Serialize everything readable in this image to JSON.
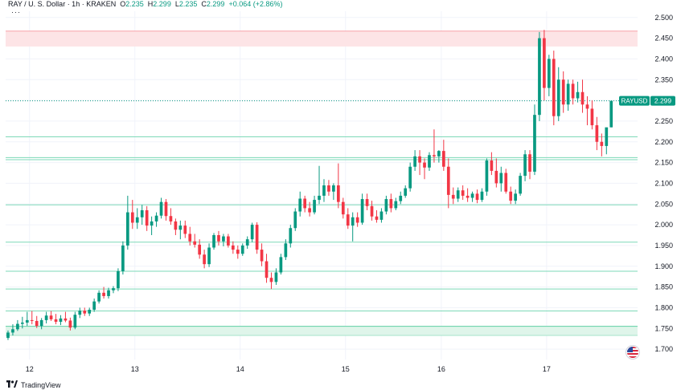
{
  "header": {
    "symbol": "RAY / U. S. Dollar · 1h · KRAKEN",
    "o_label": "O",
    "o": "2.235",
    "h_label": "H",
    "h": "2.299",
    "l_label": "L",
    "l": "2.235",
    "c_label": "C",
    "c": "2.299",
    "change": "+0.064 (+2.86%)",
    "more": "···"
  },
  "brand": {
    "name": "TradingView"
  },
  "colors": {
    "up": "#089981",
    "down": "#f23645",
    "grid": "#f0f3fa",
    "axis_text": "#131722"
  },
  "chart_data": {
    "type": "candlestick",
    "y_ticks": [
      1.7,
      1.75,
      1.8,
      1.85,
      1.9,
      1.95,
      2.0,
      2.05,
      2.1,
      2.15,
      2.2,
      2.25,
      2.3,
      2.35,
      2.4,
      2.45,
      2.5
    ],
    "y_tick_labels": [
      "1.700",
      "1.750",
      "1.800",
      "1.850",
      "1.900",
      "1.950",
      "2.000",
      "2.050",
      "2.100",
      "2.150",
      "2.200",
      "2.250",
      "2.300",
      "2.350",
      "2.400",
      "2.450",
      "2.500"
    ],
    "ylim": [
      1.675,
      2.515
    ],
    "x_labels": [
      {
        "label": "12",
        "at": 4.5
      },
      {
        "label": "13",
        "at": 26.5
      },
      {
        "label": "14",
        "at": 48.5
      },
      {
        "label": "15",
        "at": 70.5
      },
      {
        "label": "16",
        "at": 90.5
      },
      {
        "label": "17",
        "at": 112.5
      }
    ],
    "xlim": [
      -0.5,
      131.5
    ],
    "last_price_label": "RAYUSD",
    "last_price": "2.299",
    "resistance_zone": [
      2.43,
      2.467
    ],
    "support_zone": [
      1.733,
      1.755
    ],
    "horizontal_lines": [
      2.212,
      2.162,
      2.157,
      2.048,
      1.958,
      1.888,
      1.845,
      1.792
    ],
    "candles": [
      [
        1.727,
        1.745,
        1.722,
        1.74
      ],
      [
        1.74,
        1.76,
        1.733,
        1.748
      ],
      [
        1.748,
        1.77,
        1.744,
        1.761
      ],
      [
        1.761,
        1.778,
        1.75,
        1.764
      ],
      [
        1.764,
        1.79,
        1.756,
        1.77
      ],
      [
        1.77,
        1.792,
        1.76,
        1.768
      ],
      [
        1.768,
        1.78,
        1.751,
        1.756
      ],
      [
        1.756,
        1.775,
        1.748,
        1.77
      ],
      [
        1.77,
        1.79,
        1.762,
        1.781
      ],
      [
        1.781,
        1.792,
        1.768,
        1.772
      ],
      [
        1.772,
        1.785,
        1.76,
        1.766
      ],
      [
        1.766,
        1.782,
        1.758,
        1.774
      ],
      [
        1.774,
        1.79,
        1.765,
        1.769
      ],
      [
        1.769,
        1.776,
        1.745,
        1.752
      ],
      [
        1.752,
        1.79,
        1.748,
        1.783
      ],
      [
        1.783,
        1.8,
        1.775,
        1.793
      ],
      [
        1.793,
        1.8,
        1.78,
        1.786
      ],
      [
        1.786,
        1.8,
        1.78,
        1.795
      ],
      [
        1.795,
        1.822,
        1.79,
        1.815
      ],
      [
        1.815,
        1.842,
        1.81,
        1.836
      ],
      [
        1.836,
        1.85,
        1.822,
        1.828
      ],
      [
        1.828,
        1.848,
        1.822,
        1.842
      ],
      [
        1.842,
        1.852,
        1.835,
        1.847
      ],
      [
        1.847,
        1.895,
        1.84,
        1.888
      ],
      [
        1.888,
        1.96,
        1.88,
        1.95
      ],
      [
        1.95,
        2.07,
        1.94,
        2.03
      ],
      [
        2.03,
        2.06,
        1.99,
        2.005
      ],
      [
        2.005,
        2.04,
        1.99,
        2.018
      ],
      [
        2.018,
        2.048,
        2.0,
        2.035
      ],
      [
        2.035,
        2.045,
        1.985,
        1.998
      ],
      [
        1.998,
        2.02,
        1.975,
        2.008
      ],
      [
        2.008,
        2.03,
        1.995,
        2.022
      ],
      [
        2.022,
        2.065,
        2.015,
        2.055
      ],
      [
        2.055,
        2.062,
        2.01,
        2.021
      ],
      [
        2.021,
        2.04,
        2.0,
        2.008
      ],
      [
        2.008,
        2.015,
        1.975,
        1.988
      ],
      [
        1.988,
        2.01,
        1.965,
        1.998
      ],
      [
        1.998,
        2.01,
        1.968,
        1.978
      ],
      [
        1.978,
        1.995,
        1.95,
        1.96
      ],
      [
        1.96,
        1.978,
        1.945,
        1.952
      ],
      [
        1.952,
        1.965,
        1.918,
        1.928
      ],
      [
        1.928,
        1.94,
        1.895,
        1.905
      ],
      [
        1.905,
        1.955,
        1.898,
        1.945
      ],
      [
        1.945,
        1.98,
        1.94,
        1.975
      ],
      [
        1.975,
        1.985,
        1.95,
        1.96
      ],
      [
        1.96,
        1.978,
        1.948,
        1.972
      ],
      [
        1.972,
        1.978,
        1.945,
        1.95
      ],
      [
        1.95,
        1.96,
        1.93,
        1.94
      ],
      [
        1.94,
        1.95,
        1.918,
        1.93
      ],
      [
        1.93,
        1.955,
        1.925,
        1.95
      ],
      [
        1.95,
        1.972,
        1.942,
        1.965
      ],
      [
        1.965,
        2.005,
        1.958,
        2.0
      ],
      [
        2.0,
        2.006,
        1.93,
        1.94
      ],
      [
        1.94,
        1.955,
        1.9,
        1.912
      ],
      [
        1.912,
        1.93,
        1.86,
        1.872
      ],
      [
        1.872,
        1.885,
        1.845,
        1.862
      ],
      [
        1.862,
        1.895,
        1.855,
        1.885
      ],
      [
        1.885,
        1.93,
        1.88,
        1.922
      ],
      [
        1.922,
        1.965,
        1.915,
        1.955
      ],
      [
        1.955,
        2.0,
        1.945,
        1.992
      ],
      [
        1.992,
        2.04,
        1.985,
        2.032
      ],
      [
        2.032,
        2.08,
        2.02,
        2.063
      ],
      [
        2.063,
        2.07,
        2.03,
        2.04
      ],
      [
        2.04,
        2.055,
        2.02,
        2.03
      ],
      [
        2.03,
        2.07,
        2.025,
        2.06
      ],
      [
        2.06,
        2.142,
        2.05,
        2.07
      ],
      [
        2.07,
        2.11,
        2.055,
        2.095
      ],
      [
        2.095,
        2.108,
        2.07,
        2.08
      ],
      [
        2.08,
        2.1,
        2.06,
        2.095
      ],
      [
        2.095,
        2.148,
        2.04,
        2.055
      ],
      [
        2.055,
        2.065,
        2.015,
        2.025
      ],
      [
        2.025,
        2.04,
        1.99,
        1.998
      ],
      [
        1.998,
        2.03,
        1.96,
        2.018
      ],
      [
        2.018,
        2.03,
        1.995,
        2.005
      ],
      [
        2.005,
        2.075,
        2.0,
        2.062
      ],
      [
        2.062,
        2.075,
        2.035,
        2.045
      ],
      [
        2.045,
        2.058,
        2.01,
        2.02
      ],
      [
        2.02,
        2.035,
        2.005,
        2.012
      ],
      [
        2.012,
        2.04,
        2.005,
        2.032
      ],
      [
        2.032,
        2.07,
        2.025,
        2.062
      ],
      [
        2.062,
        2.075,
        2.03,
        2.04
      ],
      [
        2.04,
        2.065,
        2.035,
        2.057
      ],
      [
        2.057,
        2.08,
        2.05,
        2.07
      ],
      [
        2.07,
        2.095,
        2.065,
        2.088
      ],
      [
        2.088,
        2.15,
        2.08,
        2.14
      ],
      [
        2.14,
        2.18,
        2.13,
        2.165
      ],
      [
        2.165,
        2.18,
        2.12,
        2.15
      ],
      [
        2.15,
        2.16,
        2.11,
        2.138
      ],
      [
        2.138,
        2.175,
        2.13,
        2.168
      ],
      [
        2.168,
        2.23,
        2.15,
        2.165
      ],
      [
        2.165,
        2.18,
        2.15,
        2.178
      ],
      [
        2.178,
        2.205,
        2.13,
        2.14
      ],
      [
        2.14,
        2.16,
        2.04,
        2.072
      ],
      [
        2.072,
        2.09,
        2.05,
        2.063
      ],
      [
        2.063,
        2.09,
        2.055,
        2.083
      ],
      [
        2.083,
        2.095,
        2.06,
        2.07
      ],
      [
        2.07,
        2.088,
        2.055,
        2.065
      ],
      [
        2.065,
        2.08,
        2.055,
        2.075
      ],
      [
        2.075,
        2.085,
        2.052,
        2.06
      ],
      [
        2.06,
        2.088,
        2.055,
        2.08
      ],
      [
        2.08,
        2.16,
        2.07,
        2.155
      ],
      [
        2.155,
        2.175,
        2.12,
        2.13
      ],
      [
        2.13,
        2.16,
        2.09,
        2.1
      ],
      [
        2.1,
        2.14,
        2.08,
        2.125
      ],
      [
        2.125,
        2.135,
        2.075,
        2.08
      ],
      [
        2.08,
        2.092,
        2.05,
        2.058
      ],
      [
        2.058,
        2.085,
        2.05,
        2.075
      ],
      [
        2.075,
        2.125,
        2.07,
        2.118
      ],
      [
        2.118,
        2.18,
        2.105,
        2.17
      ],
      [
        2.17,
        2.18,
        2.11,
        2.128
      ],
      [
        2.128,
        2.29,
        2.12,
        2.265
      ],
      [
        2.265,
        2.465,
        2.25,
        2.45
      ],
      [
        2.45,
        2.47,
        2.3,
        2.33
      ],
      [
        2.33,
        2.41,
        2.31,
        2.4
      ],
      [
        2.4,
        2.42,
        2.24,
        2.262
      ],
      [
        2.262,
        2.38,
        2.25,
        2.35
      ],
      [
        2.35,
        2.37,
        2.27,
        2.29
      ],
      [
        2.29,
        2.35,
        2.275,
        2.34
      ],
      [
        2.34,
        2.35,
        2.29,
        2.305
      ],
      [
        2.305,
        2.345,
        2.295,
        2.32
      ],
      [
        2.32,
        2.35,
        2.27,
        2.29
      ],
      [
        2.29,
        2.31,
        2.24,
        2.28
      ],
      [
        2.28,
        2.3,
        2.23,
        2.24
      ],
      [
        2.24,
        2.26,
        2.18,
        2.2
      ],
      [
        2.2,
        2.22,
        2.165,
        2.19
      ],
      [
        2.19,
        2.23,
        2.17,
        2.235
      ],
      [
        2.235,
        2.299,
        2.235,
        2.299
      ]
    ]
  }
}
